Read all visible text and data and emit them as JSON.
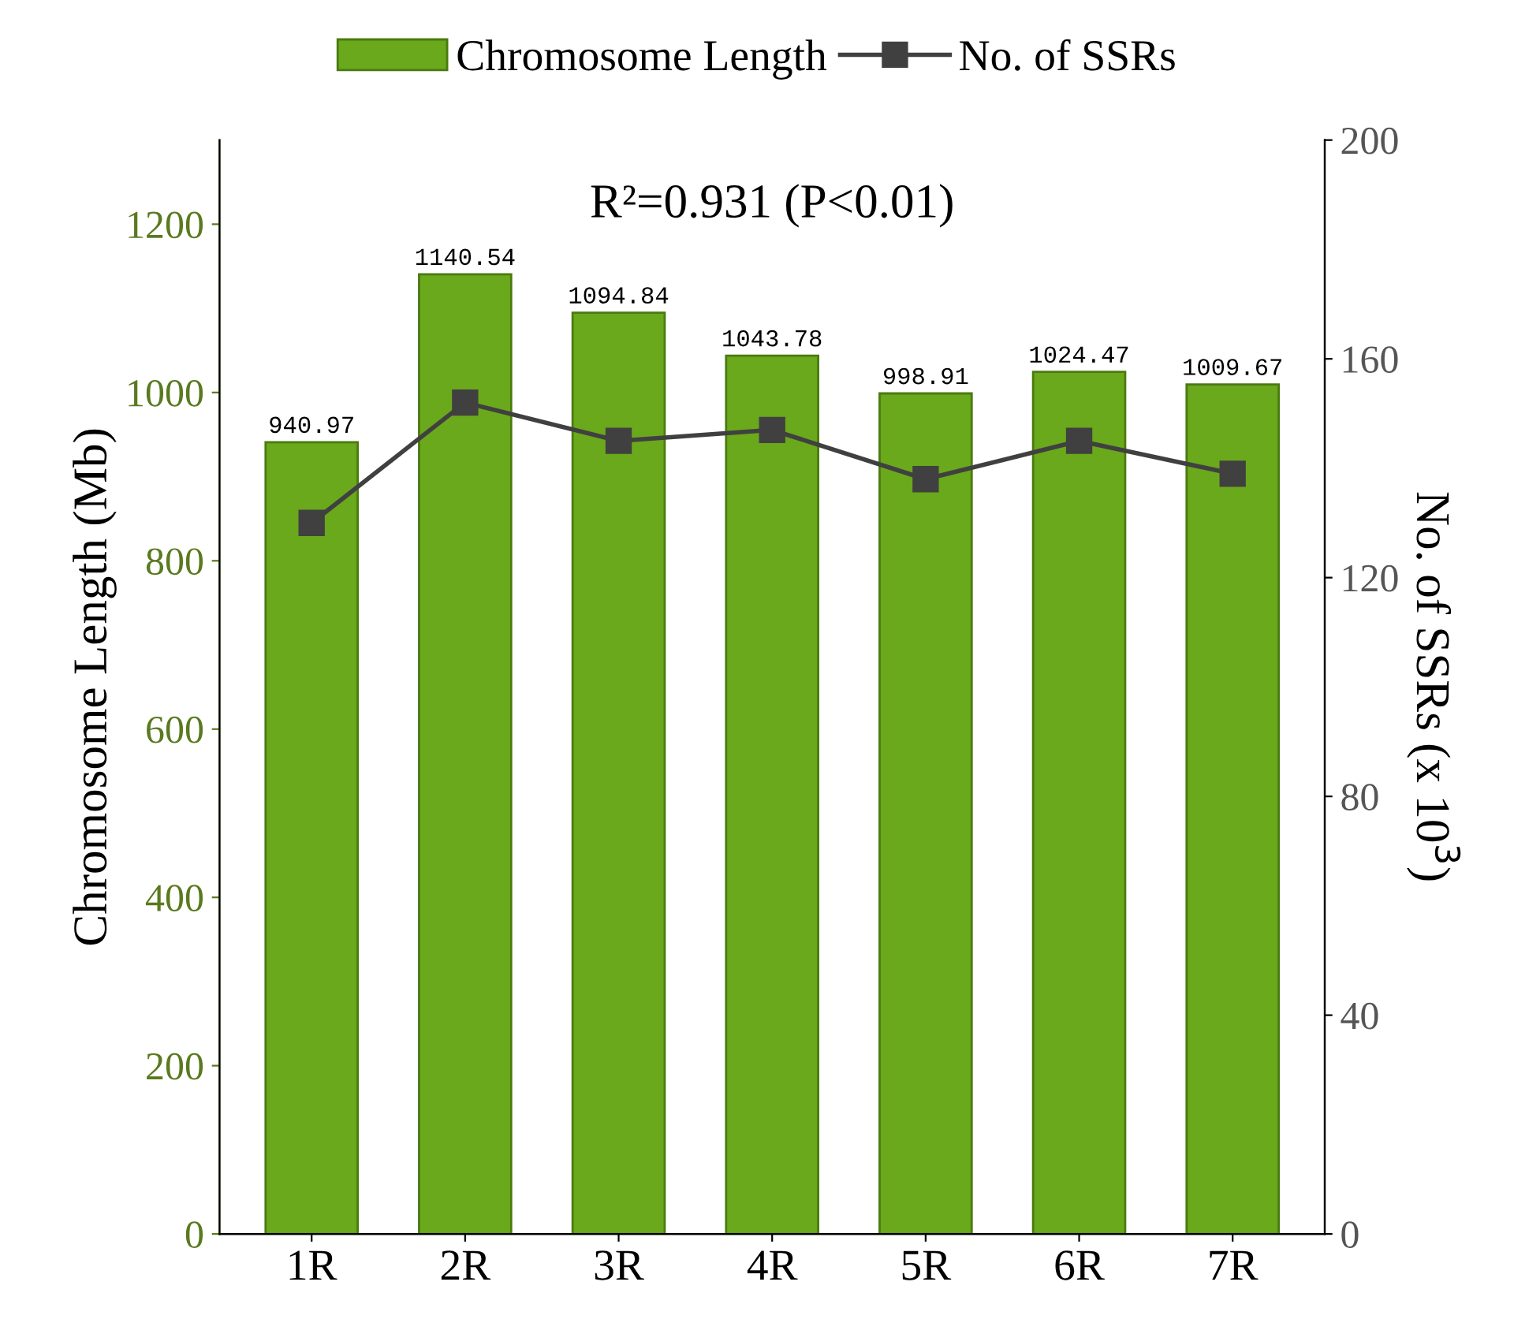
{
  "chart_data": {
    "type": "bar",
    "categories": [
      "1R",
      "2R",
      "3R",
      "4R",
      "5R",
      "6R",
      "7R"
    ],
    "ylabel": "Chromosome Length (Mb)",
    "y2label": "No. of SSRs (x 10$^{3}$)",
    "annotations": [
      "R²=0.931 (P<0.01)"
    ],
    "series": [
      {
        "name": "Chromosome Length",
        "color": "#6aa81c",
        "values": [
          940.97,
          1140.54,
          1094.84,
          1043.78,
          998.91,
          1024.47,
          1009.67
        ],
        "value_labels": [
          "940.97",
          "1140.54",
          "1094.84",
          "1043.78",
          "998.91",
          "1024.47",
          "1009.67"
        ]
      },
      {
        "name": "No. of SSRs",
        "type": "line",
        "axis": "y2",
        "color": "#404040",
        "marker": "square",
        "values": [
          130,
          152,
          145,
          147,
          138,
          145,
          139
        ]
      }
    ],
    "ylim": [
      0,
      1300
    ],
    "yticks": [
      0,
      200,
      400,
      600,
      800,
      1000,
      1200
    ],
    "y2lim": [
      0,
      200
    ],
    "y2ticks": [
      0,
      40,
      80,
      120,
      160,
      200
    ],
    "grid": false,
    "legend": "top"
  }
}
